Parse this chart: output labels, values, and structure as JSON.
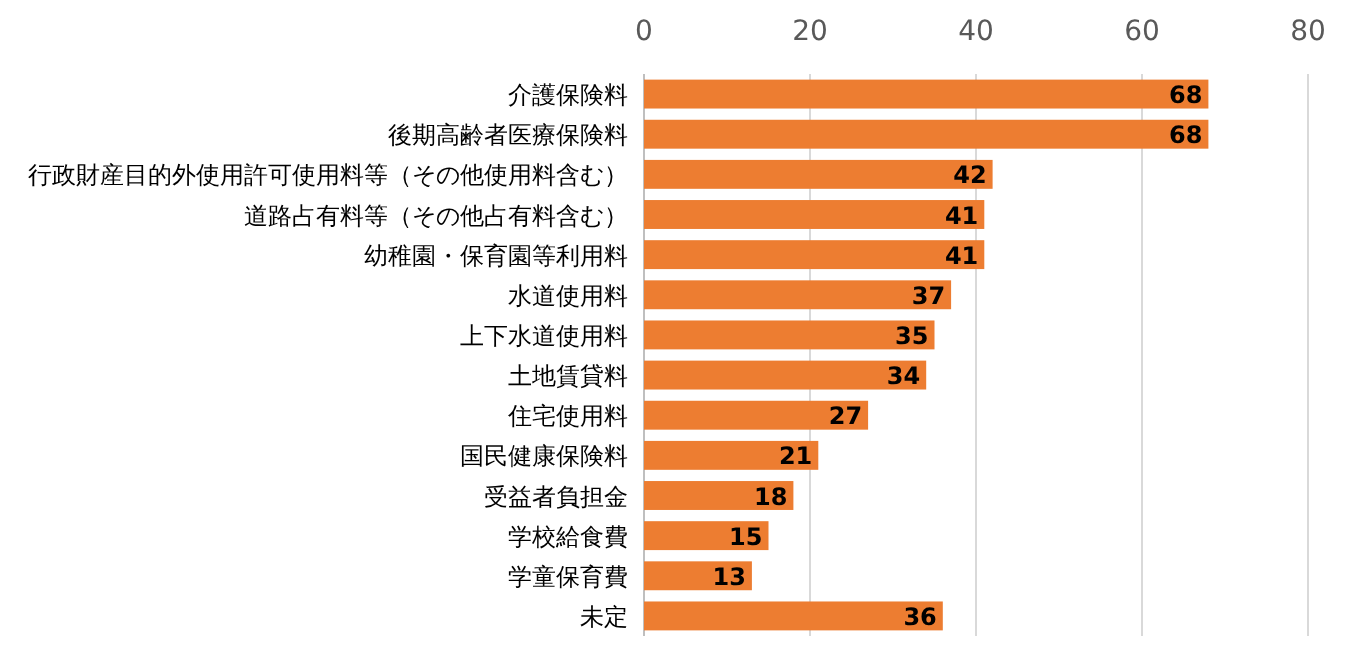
{
  "chart_data": {
    "type": "bar",
    "orientation": "horizontal",
    "categories": [
      "介護保険料",
      "後期高齢者医療保険料",
      "行政財産目的外使用許可使用料等（その他使用料含む）",
      "道路占有料等（その他占有料含む）",
      "幼稚園・保育園等利用料",
      "水道使用料",
      "上下水道使用料",
      "土地賃貸料",
      "住宅使用料",
      "国民健康保険料",
      "受益者負担金",
      "学校給食費",
      "学童保育費",
      "未定"
    ],
    "values": [
      68,
      68,
      42,
      41,
      41,
      37,
      35,
      34,
      27,
      21,
      18,
      15,
      13,
      36
    ],
    "color": "#ed7d31",
    "xlim": [
      0,
      80
    ],
    "xticks": [
      0,
      20,
      40,
      60,
      80
    ],
    "grid": "x",
    "data_labels": true
  }
}
